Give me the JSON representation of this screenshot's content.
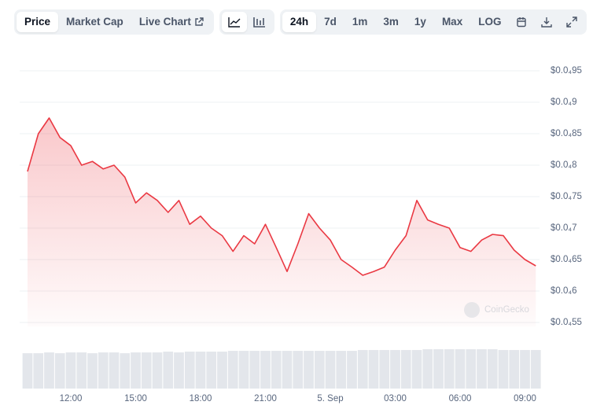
{
  "toolbar": {
    "view_tabs": [
      "Price",
      "Market Cap",
      "Live Chart"
    ],
    "range_tabs": [
      "24h",
      "7d",
      "1m",
      "3m",
      "1y",
      "Max",
      "LOG"
    ]
  },
  "watermark": "CoinGecko",
  "chart_data": {
    "type": "line",
    "color": "#ea3943",
    "grid": true,
    "categories": [
      null,
      null,
      null,
      null,
      "12:00",
      null,
      null,
      null,
      null,
      null,
      "15:00",
      null,
      null,
      null,
      null,
      null,
      "18:00",
      null,
      null,
      null,
      null,
      null,
      "21:00",
      null,
      null,
      null,
      null,
      null,
      "5. Sep",
      null,
      null,
      null,
      null,
      null,
      "03:00",
      null,
      null,
      null,
      null,
      null,
      "06:00",
      null,
      null,
      null,
      null,
      null,
      "09:00",
      null
    ],
    "values": [
      7.9e-05,
      8.5e-05,
      8.75e-05,
      8.44e-05,
      8.31e-05,
      8e-05,
      8.06e-05,
      7.94e-05,
      8e-05,
      7.81e-05,
      7.4e-05,
      7.56e-05,
      7.44e-05,
      7.25e-05,
      7.44e-05,
      7.06e-05,
      7.19e-05,
      7e-05,
      6.88e-05,
      6.63e-05,
      6.88e-05,
      6.75e-05,
      7.06e-05,
      6.69e-05,
      6.31e-05,
      6.75e-05,
      7.23e-05,
      7e-05,
      6.81e-05,
      6.5e-05,
      6.38e-05,
      6.25e-05,
      6.31e-05,
      6.38e-05,
      6.65e-05,
      6.88e-05,
      7.44e-05,
      7.13e-05,
      7.06e-05,
      7e-05,
      6.69e-05,
      6.63e-05,
      6.81e-05,
      6.9e-05,
      6.88e-05,
      6.65e-05,
      6.5e-05,
      6.4e-05
    ],
    "volume": [
      44,
      44,
      45,
      44,
      45,
      45,
      44,
      45,
      45,
      44,
      45,
      45,
      45,
      46,
      45,
      46,
      46,
      46,
      46,
      47,
      47,
      47,
      47,
      47,
      47,
      47,
      47,
      47,
      47,
      47,
      47,
      48,
      48,
      48,
      48,
      48,
      48,
      49,
      49,
      49,
      49,
      49,
      49,
      49,
      48,
      48,
      48,
      48
    ],
    "volume_color": "#e3e6eb",
    "ylim": [
      5.5e-05,
      9.5e-05
    ],
    "yticks": [
      {
        "value": 5.5e-05,
        "label": "$0.0₄55"
      },
      {
        "value": 6e-05,
        "label": "$0.0₄6"
      },
      {
        "value": 6.5e-05,
        "label": "$0.0₄65"
      },
      {
        "value": 7e-05,
        "label": "$0.0₄7"
      },
      {
        "value": 7.5e-05,
        "label": "$0.0₄75"
      },
      {
        "value": 8e-05,
        "label": "$0.0₄8"
      },
      {
        "value": 8.5e-05,
        "label": "$0.0₄85"
      },
      {
        "value": 9e-05,
        "label": "$0.0₄9"
      },
      {
        "value": 9.5e-05,
        "label": "$0.0₄95"
      }
    ]
  }
}
